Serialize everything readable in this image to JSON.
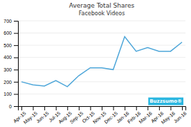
{
  "chart_data": {
    "type": "line",
    "title": "Average Total Shares",
    "subtitle": "Facebook Videos",
    "categories": [
      "Apr-15",
      "May-15",
      "Jun-15",
      "Jul-15",
      "Aug-15",
      "Sep-15",
      "Oct-15",
      "Nov-15",
      "Dec-15",
      "Jan-16",
      "Feb-16",
      "Mar-16",
      "Apr-16",
      "May-16",
      "Jun-16"
    ],
    "values": [
      200,
      175,
      165,
      210,
      160,
      250,
      315,
      315,
      300,
      570,
      450,
      480,
      450,
      450,
      525
    ],
    "color": "#4da6d9",
    "ylim": [
      0,
      700
    ],
    "yticks": [
      0,
      100,
      200,
      300,
      400,
      500,
      600,
      700
    ],
    "grid": true,
    "annotations": [
      "Buzzsumo®"
    ]
  }
}
